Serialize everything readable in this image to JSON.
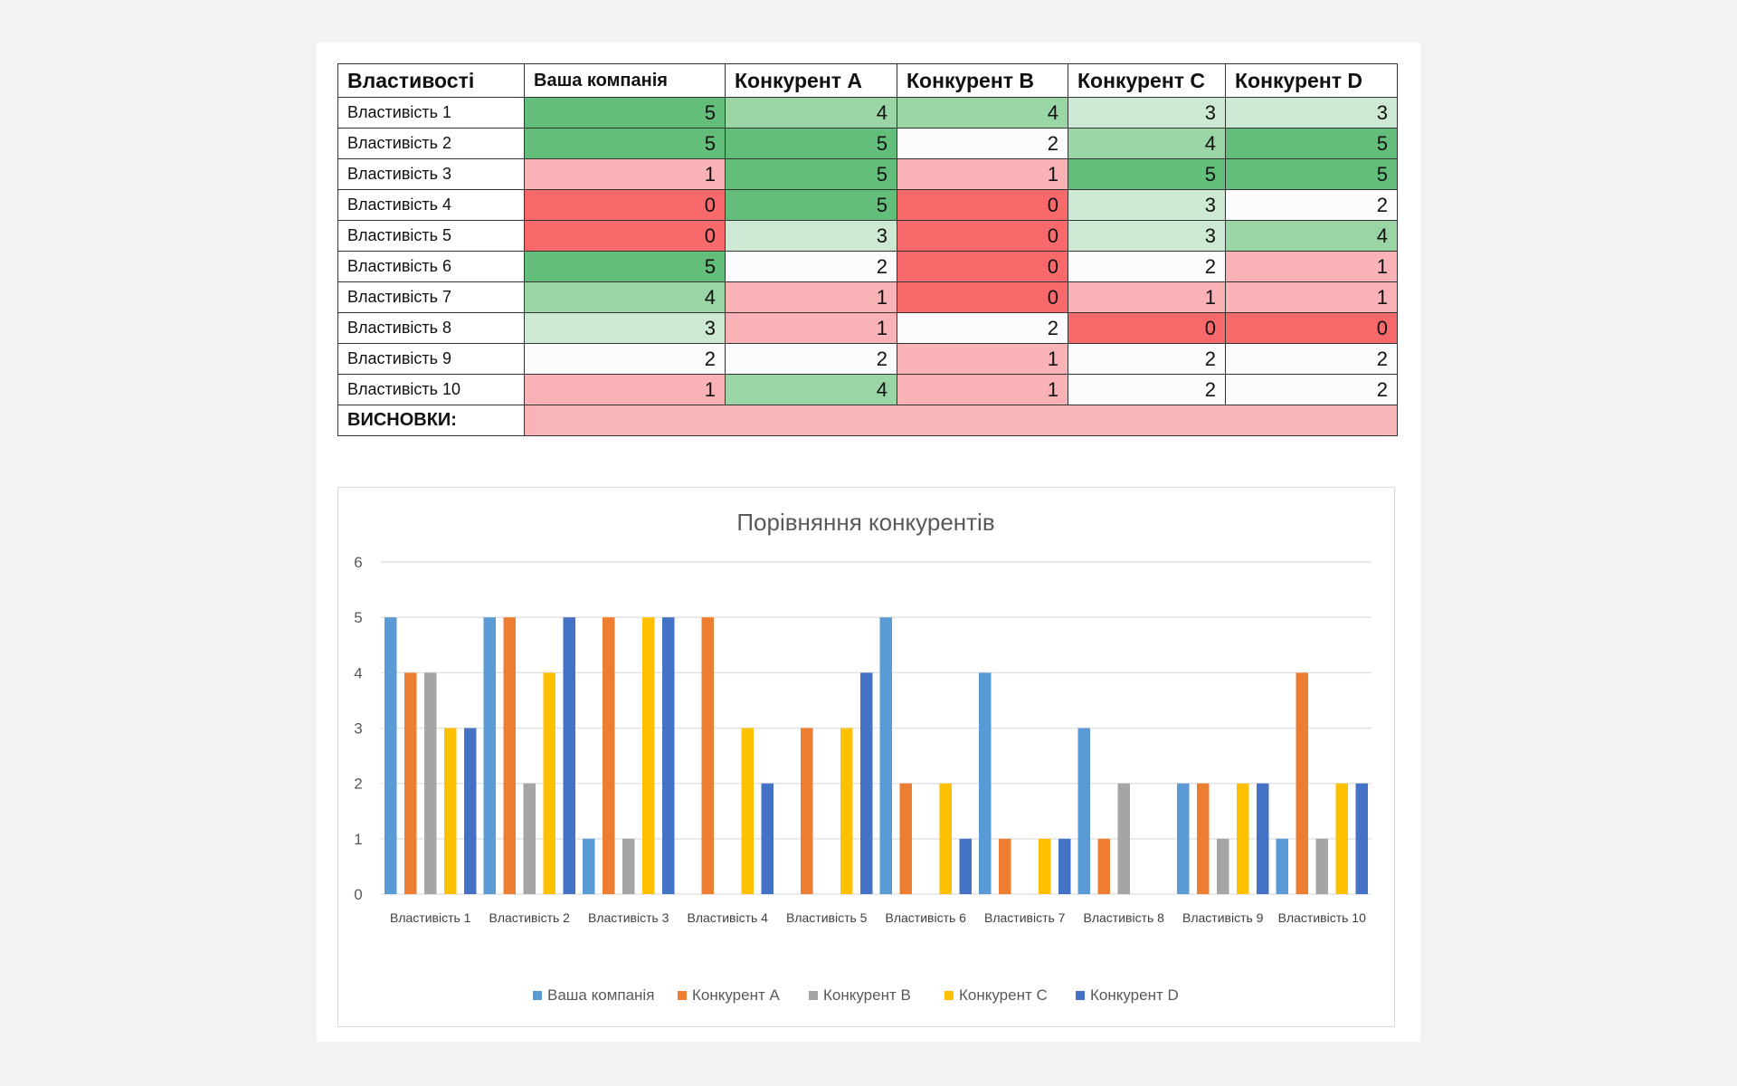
{
  "table": {
    "headers": [
      "Властивості",
      "Ваша компанія",
      "Конкурент A",
      "Конкурент B",
      "Конкурент C",
      "Конкурент D"
    ],
    "rows": [
      {
        "label": "Властивість 1",
        "values": [
          5,
          4,
          4,
          3,
          3
        ]
      },
      {
        "label": "Властивість 2",
        "values": [
          5,
          5,
          2,
          4,
          5
        ]
      },
      {
        "label": "Властивість 3",
        "values": [
          1,
          5,
          1,
          5,
          5
        ]
      },
      {
        "label": "Властивість 4",
        "values": [
          0,
          5,
          0,
          3,
          2
        ]
      },
      {
        "label": "Властивість 5",
        "values": [
          0,
          3,
          0,
          3,
          4
        ]
      },
      {
        "label": "Властивість 6",
        "values": [
          5,
          2,
          0,
          2,
          1
        ]
      },
      {
        "label": "Властивість 7",
        "values": [
          4,
          1,
          0,
          1,
          1
        ]
      },
      {
        "label": "Властивість 8",
        "values": [
          3,
          1,
          2,
          0,
          0
        ]
      },
      {
        "label": "Властивість 9",
        "values": [
          2,
          2,
          1,
          2,
          2
        ]
      },
      {
        "label": "Властивість 10",
        "values": [
          1,
          4,
          1,
          2,
          2
        ]
      }
    ],
    "conclusions_label": "ВИСНОВКИ:",
    "scale_colors": {
      "0": "#f8696b",
      "1": "#f9b3b6",
      "2": "#fcfcff",
      "3": "#cde9d4",
      "4": "#9ad5a6",
      "5": "#63be7b"
    }
  },
  "chart_data": {
    "type": "bar",
    "title": "Порівняння конкурентів",
    "categories": [
      "Властивість 1",
      "Властивість 2",
      "Властивість 3",
      "Властивість 4",
      "Властивість 5",
      "Властивість 6",
      "Властивість 7",
      "Властивість 8",
      "Властивість 9",
      "Властивість 10"
    ],
    "series": [
      {
        "name": "Ваша компанія",
        "color": "#5b9bd5",
        "values": [
          5,
          5,
          1,
          0,
          0,
          5,
          4,
          3,
          2,
          1
        ]
      },
      {
        "name": "Конкурент A",
        "color": "#ed7d31",
        "values": [
          4,
          5,
          5,
          5,
          3,
          2,
          1,
          1,
          2,
          4
        ]
      },
      {
        "name": "Конкурент B",
        "color": "#a5a5a5",
        "values": [
          4,
          2,
          1,
          0,
          0,
          0,
          0,
          2,
          1,
          1
        ]
      },
      {
        "name": "Конкурент C",
        "color": "#ffc000",
        "values": [
          3,
          4,
          5,
          3,
          3,
          2,
          1,
          0,
          2,
          2
        ]
      },
      {
        "name": "Конкурент D",
        "color": "#4472c4",
        "values": [
          3,
          5,
          5,
          2,
          4,
          1,
          1,
          0,
          2,
          2
        ]
      }
    ],
    "ylim": [
      0,
      6
    ],
    "yticks": [
      0,
      1,
      2,
      3,
      4,
      5,
      6
    ],
    "grid": true,
    "legend": "bottom",
    "xlabel": "",
    "ylabel": ""
  }
}
